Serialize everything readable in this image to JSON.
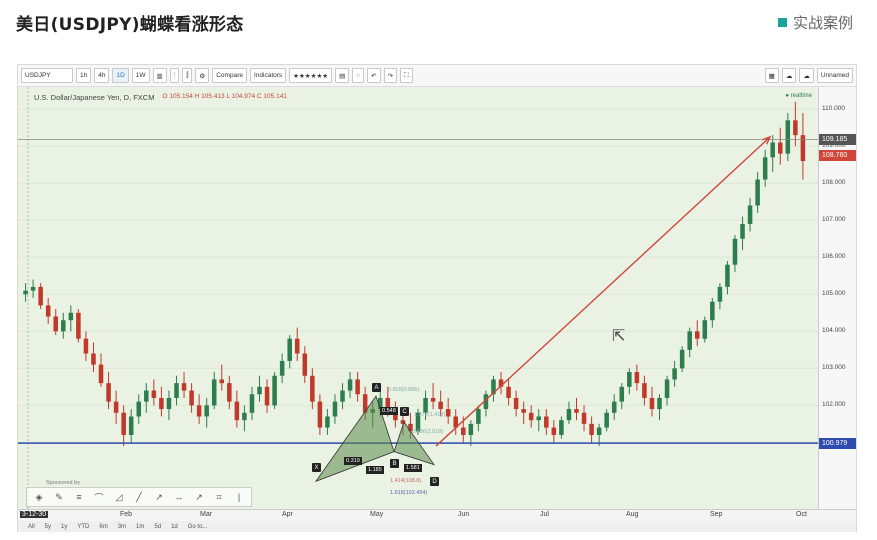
{
  "slide": {
    "title": "美日(USDJPY)蝴蝶看涨形态",
    "brand": "实战案例",
    "brand_color": "#1aa39a"
  },
  "toolbar": {
    "symbol": "USDJPY",
    "intervals": [
      "1h",
      "4h",
      "1D",
      "1W"
    ],
    "compare": "Compare",
    "indicators": "Indicators",
    "layout_name": "Unnamed"
  },
  "chart": {
    "title": "U.S. Dollar/Japanese Yen, D, FXCM",
    "ohlc": "O 105.154 H 105.413 L 104.974 C 105.141",
    "status": "● realtime",
    "sponsor": "Sponsored by",
    "price_labels": {
      "upper": "109.185",
      "current": "108.760",
      "lower": "100.979"
    },
    "pattern_points": [
      "X",
      "A",
      "B",
      "C",
      "D"
    ],
    "pattern_ratios": [
      "0.319",
      "0.548",
      "1.185",
      "1.581"
    ],
    "fib_labels": {
      "a": "0.809(0.886)",
      "b": "1.272(1.413)",
      "c": "0.886(2.618)",
      "d": "1.414(108.8)",
      "e": "1.618(102.454)"
    },
    "colors": {
      "bull": "#2e7d4f",
      "bear": "#c0392b",
      "pattern_fill": "#5d8c4a",
      "arrow": "#d0463a",
      "support": "#2f4bb0"
    }
  },
  "chart_data": {
    "type": "candlestick",
    "title": "U.S. Dollar/Japanese Yen, D, FXCM",
    "xlabel": "",
    "ylabel": "",
    "ylim": [
      99.2,
      110.6
    ],
    "y_ticks": [
      "110.000",
      "109.000",
      "108.000",
      "107.000",
      "106.000",
      "105.000",
      "104.000",
      "103.000",
      "102.000",
      "101.000"
    ],
    "x_ticks": [
      "3-12-30",
      "Feb",
      "Mar",
      "Apr",
      "May",
      "Jun",
      "Jul",
      "Aug",
      "Sep",
      "Oct"
    ],
    "series": [
      {
        "values": [
          [
            105.0,
            105.3,
            104.8,
            105.1
          ],
          [
            105.1,
            105.4,
            104.9,
            105.2
          ],
          [
            105.2,
            105.3,
            104.6,
            104.7
          ],
          [
            104.7,
            104.9,
            104.2,
            104.4
          ],
          [
            104.4,
            104.6,
            103.9,
            104.0
          ],
          [
            104.0,
            104.5,
            103.8,
            104.3
          ],
          [
            104.3,
            104.7,
            104.0,
            104.5
          ],
          [
            104.5,
            104.6,
            103.7,
            103.8
          ],
          [
            103.8,
            104.0,
            103.2,
            103.4
          ],
          [
            103.4,
            103.7,
            102.9,
            103.1
          ],
          [
            103.1,
            103.4,
            102.5,
            102.6
          ],
          [
            102.6,
            102.9,
            101.9,
            102.1
          ],
          [
            102.1,
            102.4,
            101.5,
            101.8
          ],
          [
            101.8,
            102.0,
            100.9,
            101.2
          ],
          [
            101.2,
            101.9,
            101.0,
            101.7
          ],
          [
            101.7,
            102.3,
            101.5,
            102.1
          ],
          [
            102.1,
            102.6,
            101.8,
            102.4
          ],
          [
            102.4,
            102.7,
            102.0,
            102.2
          ],
          [
            102.2,
            102.5,
            101.7,
            101.9
          ],
          [
            101.9,
            102.4,
            101.6,
            102.2
          ],
          [
            102.2,
            102.8,
            102.0,
            102.6
          ],
          [
            102.6,
            102.9,
            102.2,
            102.4
          ],
          [
            102.4,
            102.6,
            101.8,
            102.0
          ],
          [
            102.0,
            102.3,
            101.5,
            101.7
          ],
          [
            101.7,
            102.2,
            101.4,
            102.0
          ],
          [
            102.0,
            102.9,
            101.9,
            102.7
          ],
          [
            102.7,
            103.1,
            102.4,
            102.6
          ],
          [
            102.6,
            102.8,
            101.9,
            102.1
          ],
          [
            102.1,
            102.4,
            101.4,
            101.6
          ],
          [
            101.6,
            102.0,
            101.3,
            101.8
          ],
          [
            101.8,
            102.5,
            101.6,
            102.3
          ],
          [
            102.3,
            102.8,
            102.1,
            102.5
          ],
          [
            102.5,
            102.7,
            101.8,
            102.0
          ],
          [
            102.0,
            102.9,
            101.9,
            102.8
          ],
          [
            102.8,
            103.4,
            102.6,
            103.2
          ],
          [
            103.2,
            103.9,
            103.0,
            103.8
          ],
          [
            103.8,
            104.1,
            103.2,
            103.4
          ],
          [
            103.4,
            103.6,
            102.6,
            102.8
          ],
          [
            102.8,
            103.0,
            101.9,
            102.1
          ],
          [
            102.1,
            102.3,
            101.2,
            101.4
          ],
          [
            101.4,
            101.9,
            101.2,
            101.7
          ],
          [
            101.7,
            102.3,
            101.5,
            102.1
          ],
          [
            102.1,
            102.6,
            101.9,
            102.4
          ],
          [
            102.4,
            102.9,
            102.2,
            102.7
          ],
          [
            102.7,
            102.9,
            102.1,
            102.3
          ],
          [
            102.3,
            102.5,
            101.6,
            101.8
          ],
          [
            101.8,
            102.1,
            101.4,
            101.9
          ],
          [
            101.9,
            102.4,
            101.7,
            102.2
          ],
          [
            102.2,
            102.5,
            101.7,
            101.9
          ],
          [
            101.9,
            102.1,
            101.4,
            101.6
          ],
          [
            101.6,
            101.9,
            101.2,
            101.5
          ],
          [
            101.5,
            101.8,
            101.1,
            101.3
          ],
          [
            101.3,
            101.9,
            101.2,
            101.8
          ],
          [
            101.8,
            102.4,
            101.6,
            102.2
          ],
          [
            102.2,
            102.6,
            101.9,
            102.1
          ],
          [
            102.1,
            102.4,
            101.7,
            101.9
          ],
          [
            101.9,
            102.2,
            101.5,
            101.7
          ],
          [
            101.7,
            101.9,
            101.2,
            101.4
          ],
          [
            101.4,
            101.7,
            101.0,
            101.2
          ],
          [
            101.2,
            101.6,
            100.9,
            101.5
          ],
          [
            101.5,
            102.0,
            101.3,
            101.9
          ],
          [
            101.9,
            102.4,
            101.7,
            102.3
          ],
          [
            102.3,
            102.8,
            102.1,
            102.7
          ],
          [
            102.7,
            102.9,
            102.3,
            102.5
          ],
          [
            102.5,
            102.7,
            102.0,
            102.2
          ],
          [
            102.2,
            102.4,
            101.7,
            101.9
          ],
          [
            101.9,
            102.1,
            101.5,
            101.8
          ],
          [
            101.8,
            102.0,
            101.4,
            101.6
          ],
          [
            101.6,
            101.9,
            101.3,
            101.7
          ],
          [
            101.7,
            101.9,
            101.2,
            101.4
          ],
          [
            101.4,
            101.6,
            101.0,
            101.2
          ],
          [
            101.2,
            101.7,
            101.1,
            101.6
          ],
          [
            101.6,
            102.1,
            101.5,
            101.9
          ],
          [
            101.9,
            102.2,
            101.6,
            101.8
          ],
          [
            101.8,
            102.0,
            101.3,
            101.5
          ],
          [
            101.5,
            101.7,
            101.0,
            101.2
          ],
          [
            101.2,
            101.5,
            100.9,
            101.4
          ],
          [
            101.4,
            101.9,
            101.3,
            101.8
          ],
          [
            101.8,
            102.3,
            101.6,
            102.1
          ],
          [
            102.1,
            102.6,
            101.9,
            102.5
          ],
          [
            102.5,
            103.0,
            102.3,
            102.9
          ],
          [
            102.9,
            103.1,
            102.4,
            102.6
          ],
          [
            102.6,
            102.8,
            102.0,
            102.2
          ],
          [
            102.2,
            102.5,
            101.7,
            101.9
          ],
          [
            101.9,
            102.3,
            101.6,
            102.2
          ],
          [
            102.2,
            102.8,
            102.0,
            102.7
          ],
          [
            102.7,
            103.2,
            102.5,
            103.0
          ],
          [
            103.0,
            103.6,
            102.9,
            103.5
          ],
          [
            103.5,
            104.1,
            103.3,
            104.0
          ],
          [
            104.0,
            104.3,
            103.6,
            103.8
          ],
          [
            103.8,
            104.4,
            103.7,
            104.3
          ],
          [
            104.3,
            104.9,
            104.1,
            104.8
          ],
          [
            104.8,
            105.3,
            104.6,
            105.2
          ],
          [
            105.2,
            105.9,
            105.0,
            105.8
          ],
          [
            105.8,
            106.6,
            105.6,
            106.5
          ],
          [
            106.5,
            107.1,
            106.2,
            106.9
          ],
          [
            106.9,
            107.6,
            106.7,
            107.4
          ],
          [
            107.4,
            108.3,
            107.2,
            108.1
          ],
          [
            108.1,
            108.9,
            107.9,
            108.7
          ],
          [
            108.7,
            109.3,
            108.3,
            109.1
          ],
          [
            109.1,
            109.5,
            108.5,
            108.8
          ],
          [
            108.8,
            109.9,
            108.6,
            109.7
          ],
          [
            109.7,
            110.2,
            109.0,
            109.3
          ],
          [
            109.3,
            109.9,
            108.1,
            108.6
          ]
        ]
      }
    ],
    "lines": [
      {
        "name": "resistance",
        "value": 109.185
      },
      {
        "name": "support",
        "value": 100.979
      }
    ]
  }
}
